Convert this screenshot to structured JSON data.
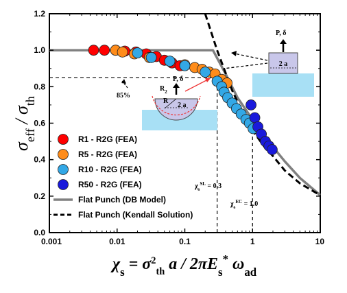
{
  "chart_data": {
    "type": "scatter",
    "x_scale": "log",
    "xlim": [
      0.001,
      10
    ],
    "ylim": [
      0.0,
      1.2
    ],
    "x_ticks": [
      "0.001",
      "0.01",
      "0.1",
      "1",
      "10"
    ],
    "y_ticks": [
      "0.0",
      "0.2",
      "0.4",
      "0.6",
      "0.8",
      "1.0",
      "1.2"
    ],
    "ylabel": "σ_eff / σ_th",
    "xlabel": "χ_s = σ_th² a / 2πE_s* ω_ad",
    "series": [
      {
        "name": "R1 - R2G (FEA)",
        "kind": "marker",
        "color": "#ff0000",
        "points": [
          [
            0.0045,
            1.0
          ],
          [
            0.0065,
            1.0
          ],
          [
            0.0095,
            1.0
          ],
          [
            0.013,
            0.995
          ],
          [
            0.019,
            0.99
          ],
          [
            0.027,
            0.98
          ],
          [
            0.038,
            0.965
          ],
          [
            0.05,
            0.945
          ],
          [
            0.065,
            0.93
          ],
          [
            0.085,
            0.915
          ]
        ]
      },
      {
        "name": "R5 - R2G (FEA)",
        "kind": "marker",
        "color": "#ff8c1a",
        "points": [
          [
            0.0095,
            1.0
          ],
          [
            0.012,
            0.99
          ],
          [
            0.018,
            0.98
          ],
          [
            0.03,
            0.96
          ],
          [
            0.06,
            0.94
          ],
          [
            0.1,
            0.92
          ],
          [
            0.14,
            0.905
          ],
          [
            0.18,
            0.895
          ],
          [
            0.23,
            0.88
          ],
          [
            0.28,
            0.87
          ],
          [
            0.35,
            0.84
          ],
          [
            0.42,
            0.82
          ]
        ]
      },
      {
        "name": "R10 - R2G (FEA)",
        "kind": "marker",
        "color": "#33a8e6",
        "points": [
          [
            0.02,
            0.985
          ],
          [
            0.032,
            0.96
          ],
          [
            0.06,
            0.94
          ],
          [
            0.1,
            0.915
          ],
          [
            0.2,
            0.88
          ],
          [
            0.3,
            0.83
          ],
          [
            0.35,
            0.8
          ],
          [
            0.38,
            0.77
          ],
          [
            0.43,
            0.74
          ],
          [
            0.5,
            0.71
          ],
          [
            0.58,
            0.68
          ],
          [
            0.68,
            0.65
          ],
          [
            0.8,
            0.62
          ],
          [
            0.9,
            0.6
          ],
          [
            1.02,
            0.57
          ]
        ]
      },
      {
        "name": "R50 - R2G (FEA)",
        "kind": "marker",
        "color": "#1a1adb",
        "points": [
          [
            0.95,
            0.7
          ],
          [
            1.08,
            0.63
          ],
          [
            1.2,
            0.58
          ],
          [
            1.35,
            0.54
          ],
          [
            1.55,
            0.5
          ],
          [
            1.75,
            0.475
          ],
          [
            1.95,
            0.455
          ]
        ]
      },
      {
        "name": "Flat Punch (DB Model)",
        "kind": "line",
        "color": "#808080",
        "points": [
          [
            0.001,
            1.0
          ],
          [
            0.26,
            1.0
          ],
          [
            0.4,
            0.87
          ],
          [
            0.6,
            0.74
          ],
          [
            1.0,
            0.62
          ],
          [
            1.5,
            0.53
          ],
          [
            2.0,
            0.47
          ],
          [
            3.0,
            0.39
          ],
          [
            5.0,
            0.3
          ],
          [
            10.0,
            0.205
          ]
        ]
      },
      {
        "name": "Flat Punch (Kendall Solution)",
        "kind": "dashed-line",
        "color": "#000000",
        "points": [
          [
            0.2,
            1.2
          ],
          [
            0.3,
            1.0
          ],
          [
            0.5,
            0.78
          ],
          [
            0.75,
            0.64
          ],
          [
            1.0,
            0.56
          ],
          [
            1.5,
            0.47
          ],
          [
            2.0,
            0.42
          ],
          [
            3.0,
            0.34
          ],
          [
            5.0,
            0.27
          ],
          [
            10.0,
            0.205
          ]
        ]
      }
    ],
    "reference_lines": [
      {
        "kind": "horizontal",
        "y": 0.85,
        "x_from": 0.001,
        "x_to": 0.3
      },
      {
        "kind": "vertical",
        "x": 0.3,
        "y_from": 0.0,
        "y_to": 0.85
      },
      {
        "kind": "vertical",
        "x": 1.0,
        "y_from": 0.0,
        "y_to": 0.6
      }
    ],
    "annotations": {
      "pct": "85%",
      "chi_sl": "χ_s^SL = 0.3",
      "chi_ec": "χ_s^EC = 1.0",
      "punch_label": "P, δ",
      "punch_width": "2 a",
      "sphere_r": "R",
      "sphere_r2": "R_2",
      "sphere_width": "2 a",
      "sphere_load": "P, δ"
    },
    "legend_placement": "bottom-left",
    "grid": false
  }
}
